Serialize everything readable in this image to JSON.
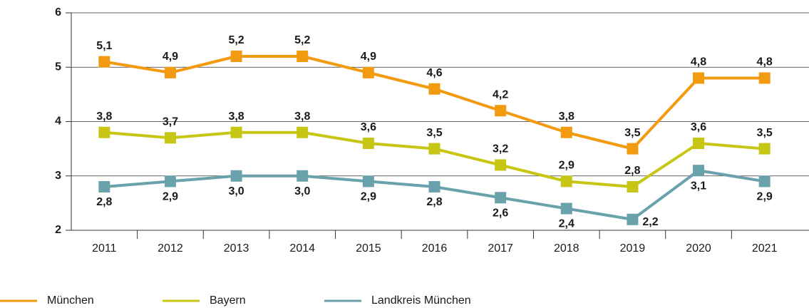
{
  "chart_data": {
    "type": "line",
    "categories": [
      "2011",
      "2012",
      "2013",
      "2014",
      "2015",
      "2016",
      "2017",
      "2018",
      "2019",
      "2020",
      "2021"
    ],
    "series": [
      {
        "name": "München",
        "color": "#f29b11",
        "values": [
          5.1,
          4.9,
          5.2,
          5.2,
          4.9,
          4.6,
          4.2,
          3.8,
          3.5,
          4.8,
          4.8
        ],
        "value_labels": [
          "5,1",
          "4,9",
          "5,2",
          "5,2",
          "4,9",
          "4,6",
          "4,2",
          "3,8",
          "3,5",
          "4,8",
          "4,8"
        ]
      },
      {
        "name": "Bayern",
        "color": "#c8c614",
        "values": [
          3.8,
          3.7,
          3.8,
          3.8,
          3.6,
          3.5,
          3.2,
          2.9,
          2.8,
          3.6,
          3.5
        ],
        "value_labels": [
          "3,8",
          "3,7",
          "3,8",
          "3,8",
          "3,6",
          "3,5",
          "3,2",
          "2,9",
          "2,8",
          "3,6",
          "3,5"
        ]
      },
      {
        "name": "Landkreis München",
        "color": "#6aa2ac",
        "values": [
          2.8,
          2.9,
          3.0,
          3.0,
          2.9,
          2.8,
          2.6,
          2.4,
          2.2,
          3.1,
          2.9
        ],
        "value_labels": [
          "2,8",
          "2,9",
          "3,0",
          "3,0",
          "2,9",
          "2,8",
          "2,6",
          "2,4",
          "2,2",
          "3,1",
          "2,9"
        ]
      }
    ],
    "ylim": [
      2,
      6
    ],
    "yticks": [
      2,
      3,
      4,
      5,
      6
    ],
    "grid": true,
    "legend": "bottom"
  }
}
